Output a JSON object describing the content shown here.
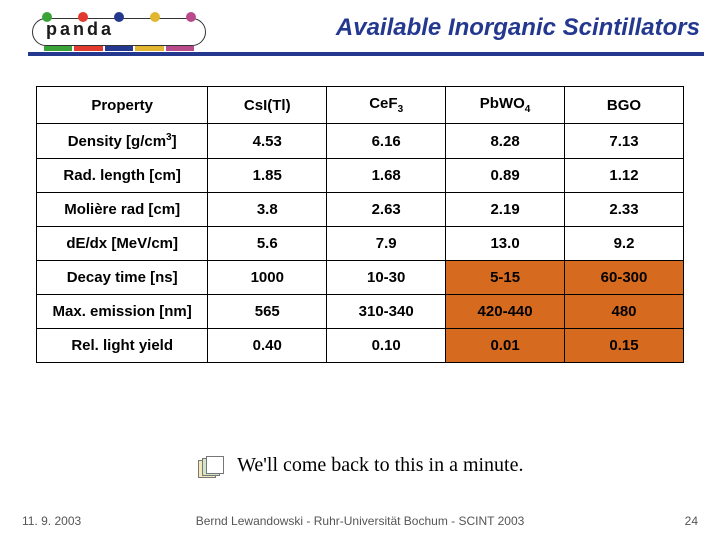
{
  "slide_title": "Available Inorganic Scintillators",
  "title_color": "#25388f",
  "underline_color": "#25388f",
  "logo": {
    "text": "panda",
    "dots_colors": [
      "#3aa338",
      "#e23a2e",
      "#25388f",
      "#e2b62e",
      "#b94a8c"
    ],
    "bar_colors": [
      "#3aa338",
      "#e23a2e",
      "#25388f",
      "#e2b62e",
      "#b94a8c"
    ]
  },
  "table": {
    "columns": [
      "Property",
      "CsI(Tl)",
      "CeF3",
      "PbWO4",
      "BGO"
    ],
    "col_sub": [
      "",
      "",
      "3",
      "4",
      ""
    ],
    "rows": [
      {
        "label": "Density [g/cm3]",
        "label_sup": "3",
        "values": [
          "4.53",
          "6.16",
          "8.28",
          "7.13"
        ]
      },
      {
        "label": "Rad. length [cm]",
        "values": [
          "1.85",
          "1.68",
          "0.89",
          "1.12"
        ]
      },
      {
        "label": "Molière rad [cm]",
        "values": [
          "3.8",
          "2.63",
          "2.19",
          "2.33"
        ]
      },
      {
        "label": "dE/dx [MeV/cm]",
        "values": [
          "5.6",
          "7.9",
          "13.0",
          "9.2"
        ]
      },
      {
        "label": "Decay time [ns]",
        "values": [
          "1000",
          "10-30",
          "5-15",
          "60-300"
        ]
      },
      {
        "label": "Max. emission [nm]",
        "values": [
          "565",
          "310-340",
          "420-440",
          "480"
        ]
      },
      {
        "label": "Rel. light yield",
        "values": [
          "0.40",
          "0.10",
          "0.01",
          "0.15"
        ]
      }
    ],
    "highlight_color": "#d66a1f",
    "highlight_cells": [
      {
        "row": 4,
        "col": 3
      },
      {
        "row": 4,
        "col": 4
      },
      {
        "row": 5,
        "col": 3
      },
      {
        "row": 5,
        "col": 4
      },
      {
        "row": 6,
        "col": 3
      },
      {
        "row": 6,
        "col": 4
      }
    ]
  },
  "note_text": "We'll come back to this in a minute.",
  "footer": {
    "date": "11. 9. 2003",
    "center": "Bernd Lewandowski - Ruhr-Universität Bochum - SCINT 2003",
    "page": "24"
  }
}
